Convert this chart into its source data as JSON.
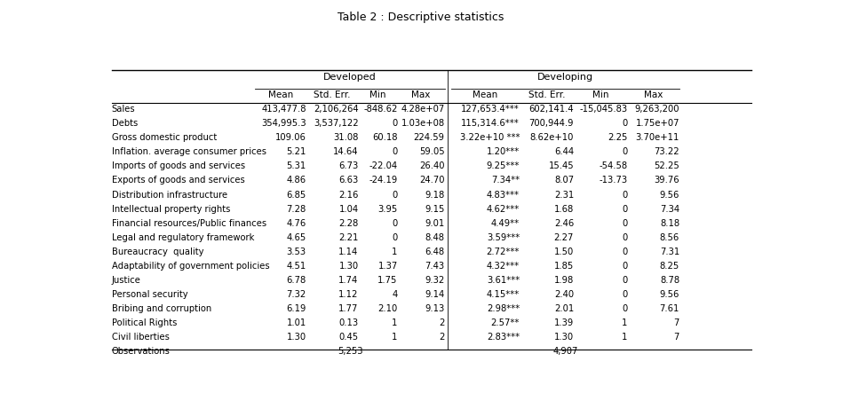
{
  "title": "Table 2 : Descriptive statistics",
  "row_labels": [
    "Sales",
    "Debts",
    "Gross domestic product",
    "Inflation. average consumer prices",
    "Imports of goods and services",
    "Exports of goods and services",
    "Distribution infrastructure",
    "Intellectual property rights",
    "Financial resources/Public finances",
    "Legal and regulatory framework",
    "Bureaucracy  quality",
    "Adaptability of government policies",
    "Justice",
    "Personal security",
    "Bribing and corruption",
    "Political Rights",
    "Civil liberties",
    "Observations"
  ],
  "developed": [
    [
      "413,477.8",
      "2,106,264",
      "-848.62",
      "4.28e+07"
    ],
    [
      "354,995.3",
      "3,537,122",
      "0",
      "1.03e+08"
    ],
    [
      "109.06",
      "31.08",
      "60.18",
      "224.59"
    ],
    [
      "5.21",
      "14.64",
      "0",
      "59.05"
    ],
    [
      "5.31",
      "6.73",
      "-22.04",
      "26.40"
    ],
    [
      "4.86",
      "6.63",
      "-24.19",
      "24.70"
    ],
    [
      "6.85",
      "2.16",
      "0",
      "9.18"
    ],
    [
      "7.28",
      "1.04",
      "3.95",
      "9.15"
    ],
    [
      "4.76",
      "2.28",
      "0",
      "9.01"
    ],
    [
      "4.65",
      "2.21",
      "0",
      "8.48"
    ],
    [
      "3.53",
      "1.14",
      "1",
      "6.48"
    ],
    [
      "4.51",
      "1.30",
      "1.37",
      "7.43"
    ],
    [
      "6.78",
      "1.74",
      "1.75",
      "9.32"
    ],
    [
      "7.32",
      "1.12",
      "4",
      "9.14"
    ],
    [
      "6.19",
      "1.77",
      "2.10",
      "9.13"
    ],
    [
      "1.01",
      "0.13",
      "1",
      "2"
    ],
    [
      "1.30",
      "0.45",
      "1",
      "2"
    ],
    [
      "",
      "",
      "5,253",
      ""
    ]
  ],
  "developing": [
    [
      "127,653.4***",
      "602,141.4",
      "-15,045.83",
      "9,263,200"
    ],
    [
      "115,314.6***",
      "700,944.9",
      "0",
      "1.75e+07"
    ],
    [
      "3.22e+10 ***",
      "8.62e+10",
      "2.25",
      "3.70e+11"
    ],
    [
      "1.20***",
      "6.44",
      "0",
      "73.22"
    ],
    [
      "9.25***",
      "15.45",
      "-54.58",
      "52.25"
    ],
    [
      "7.34**",
      "8.07",
      "-13.73",
      "39.76"
    ],
    [
      "4.83***",
      "2.31",
      "0",
      "9.56"
    ],
    [
      "4.62***",
      "1.68",
      "0",
      "7.34"
    ],
    [
      "4.49**",
      "2.46",
      "0",
      "8.18"
    ],
    [
      "3.59***",
      "2.27",
      "0",
      "8.56"
    ],
    [
      "2.72***",
      "1.50",
      "0",
      "7.31"
    ],
    [
      "4.32***",
      "1.85",
      "0",
      "8.25"
    ],
    [
      "3.61***",
      "1.98",
      "0",
      "8.78"
    ],
    [
      "4.15***",
      "2.40",
      "0",
      "9.56"
    ],
    [
      "2.98***",
      "2.01",
      "0",
      "7.61"
    ],
    [
      "2.57**",
      "1.39",
      "1",
      "7"
    ],
    [
      "2.83***",
      "1.30",
      "1",
      "7"
    ],
    [
      "",
      "",
      "4,907",
      ""
    ]
  ],
  "col_headers": [
    "Mean",
    "Std. Err.",
    "Min",
    "Max"
  ],
  "group_headers": [
    "Developed",
    "Developing"
  ],
  "obs_dev": "5,253",
  "obs_developing": "4,907"
}
